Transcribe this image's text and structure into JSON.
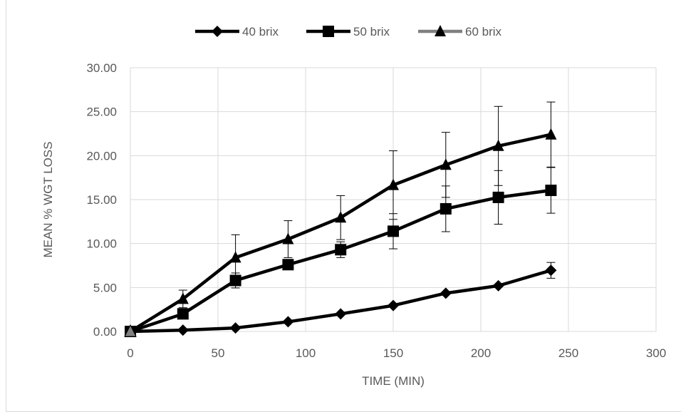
{
  "chart_data": {
    "type": "line",
    "title": "",
    "xlabel": "TIME (MIN)",
    "ylabel": "MEAN  % WGT LOSS",
    "xlim": [
      0,
      300
    ],
    "ylim": [
      0,
      30
    ],
    "x_ticks": [
      "0",
      "50",
      "100",
      "150",
      "200",
      "250",
      "300"
    ],
    "y_ticks": [
      "0.00",
      "5.00",
      "10.00",
      "15.00",
      "20.00",
      "25.00",
      "30.00"
    ],
    "grid": true,
    "legend_position": "top",
    "x": [
      0,
      30,
      60,
      90,
      120,
      150,
      180,
      210,
      240
    ],
    "series": [
      {
        "name": "40 brix",
        "marker": "diamond",
        "color": "#000000",
        "values": [
          0.0,
          0.15,
          0.4,
          1.1,
          2.0,
          2.95,
          4.35,
          5.2,
          6.95
        ],
        "errors": [
          0,
          0,
          0,
          0,
          0,
          0,
          0,
          0,
          0.9
        ]
      },
      {
        "name": "50 brix",
        "marker": "square",
        "color": "#000000",
        "values": [
          0.0,
          2.0,
          5.8,
          7.6,
          9.3,
          11.4,
          13.95,
          15.25,
          16.05
        ],
        "errors": [
          0,
          0,
          0.85,
          0,
          0.9,
          2.0,
          2.6,
          3.05,
          2.6
        ]
      },
      {
        "name": "60 brix",
        "marker": "triangle",
        "color": "#000000",
        "values": [
          0.0,
          3.7,
          8.4,
          10.5,
          12.95,
          16.65,
          18.95,
          21.1,
          22.4
        ],
        "errors": [
          0,
          1.0,
          2.6,
          2.1,
          2.5,
          3.9,
          3.7,
          4.5,
          3.7
        ]
      }
    ]
  }
}
